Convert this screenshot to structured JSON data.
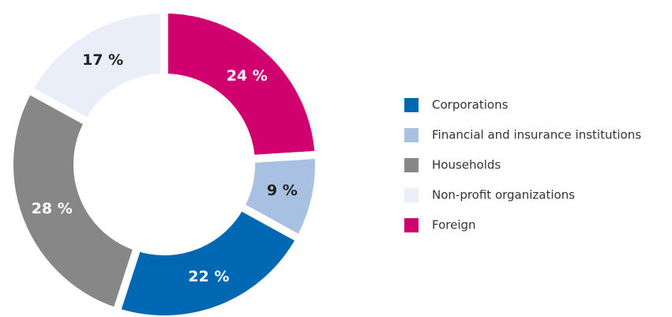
{
  "chart_data": {
    "type": "donut",
    "categories": [
      "Foreign",
      "Financial and insurance institutions",
      "Corporations",
      "Households",
      "Non-profit organizations"
    ],
    "values": [
      24,
      9,
      22,
      28,
      17
    ],
    "value_labels": [
      "24 %",
      "9 %",
      "22 %",
      "28 %",
      "17 %"
    ],
    "colors": [
      "#d1006f",
      "#a8c0e2",
      "#0068b2",
      "#878787",
      "#e9eef8"
    ],
    "legend": "right"
  }
}
